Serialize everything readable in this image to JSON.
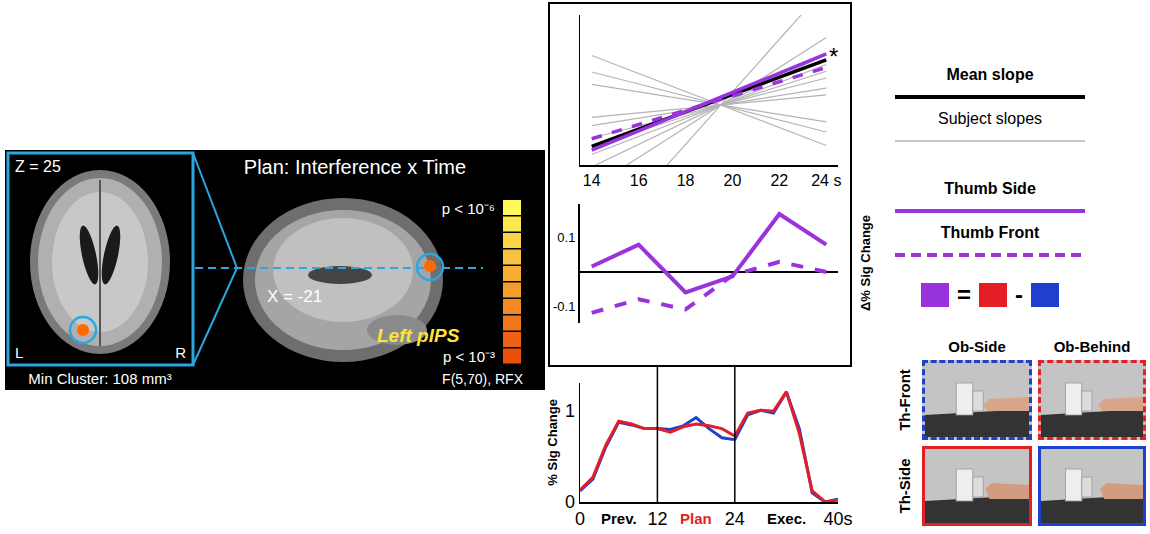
{
  "brain_panel": {
    "title": "Plan: Interference x Time",
    "axial": {
      "label": "Z = 25",
      "left": "L",
      "right": "R",
      "note": "Min Cluster: 108 mm³"
    },
    "sagittal": {
      "label": "X = -21",
      "region": "Left pIPS"
    },
    "color_scale": {
      "top": "p < 10⁻⁶",
      "bottom": "p < 10⁻³",
      "statistic": "F(5,70), RFX"
    }
  },
  "chart_data": [
    {
      "type": "line",
      "x": [
        14,
        24
      ],
      "xlim": [
        13.5,
        24.5
      ],
      "xticks": [
        14,
        16,
        18,
        20,
        22,
        {
          "value": 24,
          "label": "24 s"
        }
      ],
      "ylim": [
        -1,
        1
      ],
      "yticks": [],
      "tick_labels": "x",
      "grid": false,
      "series": [
        {
          "name": "Mean slope",
          "color": "#000000",
          "line_style": "solid",
          "values": [
            -0.75,
            0.4
          ]
        },
        {
          "name": "Subject slopes",
          "color": "#b4b4b4",
          "line_style": "solid",
          "values": [
            [
              -1.3,
              0.7
            ],
            [
              -1.025,
              0.475
            ],
            [
              -0.86,
              0.34
            ],
            [
              -0.75,
              0.25
            ],
            [
              -0.64,
              0.16
            ],
            [
              -0.475,
              0.025
            ],
            [
              0.075,
              -0.425
            ],
            [
              0.24,
              -0.56
            ],
            [
              -0.365,
              -0.065
            ],
            [
              -2.125,
              1.375
            ],
            [
              0.46,
              -0.74
            ]
          ]
        },
        {
          "name": "Thumb Side",
          "color": "#9933dd",
          "line_style": "solid",
          "values": [
            -0.8,
            0.48
          ]
        },
        {
          "name": "Thumb Front",
          "color": "#9933dd",
          "line_style": "dashed",
          "values": [
            -0.65,
            0.3
          ]
        }
      ],
      "annotations": [
        {
          "text": "*",
          "x": 24.3,
          "y": 0.45
        }
      ]
    },
    {
      "type": "line",
      "x": [
        14,
        16,
        18,
        20,
        22,
        24
      ],
      "xlim": [
        13.5,
        24.5
      ],
      "xticks": [],
      "ylim": [
        -0.15,
        0.2
      ],
      "yticks": [
        -0.1,
        0.1
      ],
      "y_label": "Δ% Sig Change",
      "tick_labels": "y",
      "grid": false,
      "series": [
        {
          "name": "Thumb Side",
          "color": "#9933dd",
          "line_style": "solid",
          "values": [
            0.016,
            0.08,
            -0.06,
            -0.013,
            0.17,
            0.08
          ]
        },
        {
          "name": "Thumb Front",
          "color": "#9933dd",
          "line_style": "dashed",
          "values": [
            -0.12,
            -0.08,
            -0.11,
            -0.01,
            0.03,
            0.0
          ]
        }
      ]
    },
    {
      "type": "line",
      "x": [
        0,
        2,
        4,
        6,
        8,
        10,
        12,
        14,
        16,
        18,
        20,
        22,
        24,
        26,
        28,
        30,
        32,
        34,
        36,
        38,
        40
      ],
      "xlim": [
        0,
        40
      ],
      "xticks": [
        0,
        12,
        24,
        {
          "value": 40,
          "label": "40s"
        }
      ],
      "ylim": [
        0,
        1.3
      ],
      "yticks": [
        0,
        1
      ],
      "y_label": "% Sig Change",
      "grid": false,
      "window": [
        12,
        24
      ],
      "phases": [
        {
          "text": "Prev.",
          "x": 6,
          "color": "#000000"
        },
        {
          "text": "Plan",
          "x": 18,
          "color": "#e31e24"
        },
        {
          "text": "Exec.",
          "x": 32,
          "color": "#000000"
        }
      ],
      "series": [
        {
          "color": "#1f3fcf",
          "line_style": "solid",
          "values": [
            0.12,
            0.25,
            0.6,
            0.87,
            0.84,
            0.8,
            0.8,
            0.79,
            0.83,
            0.92,
            0.8,
            0.7,
            0.68,
            0.95,
            1.0,
            0.97,
            1.2,
            0.8,
            0.1,
            0.0,
            0.03
          ]
        },
        {
          "color": "#e31e24",
          "line_style": "solid",
          "values": [
            0.13,
            0.27,
            0.62,
            0.88,
            0.85,
            0.8,
            0.8,
            0.76,
            0.82,
            0.85,
            0.83,
            0.8,
            0.72,
            0.97,
            1.0,
            0.99,
            1.2,
            0.75,
            0.12,
            0.0,
            0.02
          ]
        }
      ]
    }
  ],
  "condition_key": {
    "equation": [
      {
        "color": "#9933dd"
      },
      "=",
      {
        "color": "#e31e24"
      },
      "-",
      {
        "color": "#1f3fcf"
      }
    ],
    "columns": [
      "Ob-Side",
      "Ob-Behind"
    ],
    "rows": [
      "Th-Front",
      "Th-Side"
    ],
    "photos": [
      [
        {
          "color": "#1f3fcf",
          "line_style": "dashed"
        },
        {
          "color": "#e31e24",
          "line_style": "dashed"
        }
      ],
      [
        {
          "color": "#e31e24",
          "line_style": "solid"
        },
        {
          "color": "#1f3fcf",
          "line_style": "solid"
        }
      ]
    ]
  }
}
